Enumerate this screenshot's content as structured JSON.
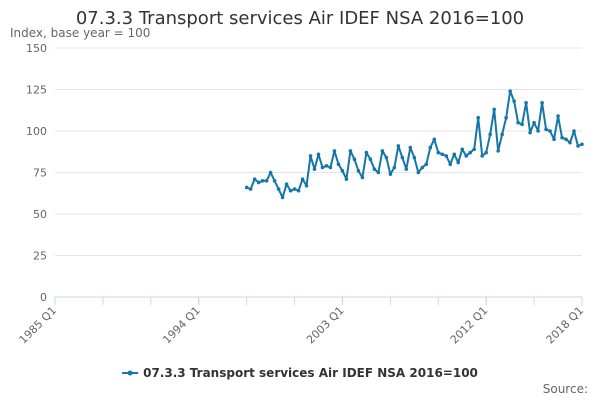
{
  "chart_data": {
    "type": "line",
    "title": "07.3.3 Transport services Air IDEF NSA 2016=100",
    "ylabel": "Index, base year = 100",
    "xlabel": "",
    "ylim": [
      0,
      150
    ],
    "y_ticks": [
      "0",
      "25",
      "50",
      "75",
      "100",
      "125",
      "150"
    ],
    "x_ticks": [
      "1985 Q1",
      "1994 Q1",
      "2003 Q1",
      "2012 Q1",
      "2018 Q1"
    ],
    "x_range": [
      "1985 Q1",
      "2018 Q1"
    ],
    "grid": "horizontal",
    "legend": "bottom-center",
    "source": "Source:",
    "series": [
      {
        "name": "07.3.3 Transport services Air IDEF NSA 2016=100",
        "color": "#1576a8",
        "x": [
          "1997 Q1",
          "1997 Q2",
          "1997 Q3",
          "1997 Q4",
          "1998 Q1",
          "1998 Q2",
          "1998 Q3",
          "1998 Q4",
          "1999 Q1",
          "1999 Q2",
          "1999 Q3",
          "1999 Q4",
          "2000 Q1",
          "2000 Q2",
          "2000 Q3",
          "2000 Q4",
          "2001 Q1",
          "2001 Q2",
          "2001 Q3",
          "2001 Q4",
          "2002 Q1",
          "2002 Q2",
          "2002 Q3",
          "2002 Q4",
          "2003 Q1",
          "2003 Q2",
          "2003 Q3",
          "2003 Q4",
          "2004 Q1",
          "2004 Q2",
          "2004 Q3",
          "2004 Q4",
          "2005 Q1",
          "2005 Q2",
          "2005 Q3",
          "2005 Q4",
          "2006 Q1",
          "2006 Q2",
          "2006 Q3",
          "2006 Q4",
          "2007 Q1",
          "2007 Q2",
          "2007 Q3",
          "2007 Q4",
          "2008 Q1",
          "2008 Q2",
          "2008 Q3",
          "2008 Q4",
          "2009 Q1",
          "2009 Q2",
          "2009 Q3",
          "2009 Q4",
          "2010 Q1",
          "2010 Q2",
          "2010 Q3",
          "2010 Q4",
          "2011 Q1",
          "2011 Q2",
          "2011 Q3",
          "2011 Q4",
          "2012 Q1",
          "2012 Q2",
          "2012 Q3",
          "2012 Q4",
          "2013 Q1",
          "2013 Q2",
          "2013 Q3",
          "2013 Q4",
          "2014 Q1",
          "2014 Q2",
          "2014 Q3",
          "2014 Q4",
          "2015 Q1",
          "2015 Q2",
          "2015 Q3",
          "2015 Q4",
          "2016 Q1",
          "2016 Q2",
          "2016 Q3",
          "2016 Q4",
          "2017 Q1",
          "2017 Q2",
          "2017 Q3",
          "2017 Q4",
          "2018 Q1"
        ],
        "values": [
          66,
          65,
          71,
          69,
          70,
          70,
          75,
          70,
          65,
          60,
          68,
          64,
          65,
          64,
          71,
          67,
          85,
          77,
          86,
          78,
          79,
          78,
          88,
          80,
          76,
          71,
          88,
          83,
          76,
          72,
          87,
          83,
          77,
          75,
          88,
          84,
          74,
          78,
          91,
          84,
          77,
          90,
          84,
          75,
          78,
          80,
          90,
          95,
          87,
          86,
          85,
          80,
          86,
          81,
          89,
          85,
          87,
          89,
          108,
          85,
          87,
          98,
          113,
          88,
          98,
          108,
          124,
          118,
          105,
          104,
          117,
          99,
          105,
          100,
          117,
          101,
          100,
          95,
          109,
          96,
          95,
          93,
          100,
          91,
          92
        ]
      }
    ]
  }
}
